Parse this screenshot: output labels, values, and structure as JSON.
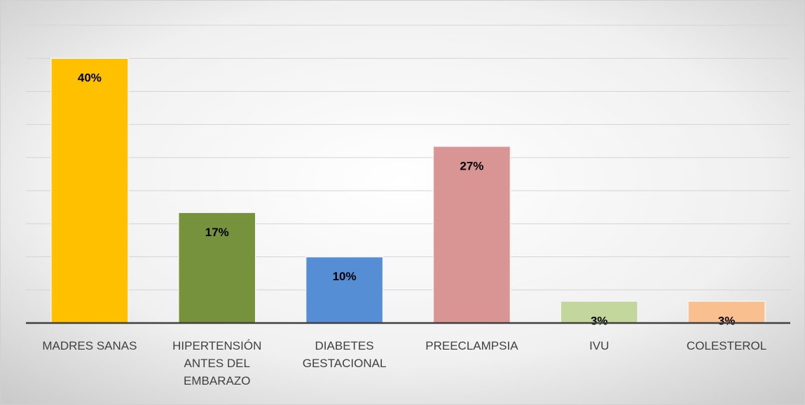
{
  "chart_data": {
    "type": "bar",
    "categories": [
      "MADRES SANAS",
      "HIPERTENSIÓN ANTES DEL EMBARAZO",
      "DIABETES GESTACIONAL",
      "PREECLAMPSIA",
      "IVU",
      "COLESTEROL"
    ],
    "values": [
      40,
      16.7,
      10,
      26.7,
      3.3,
      3.3
    ],
    "value_labels": [
      "40%",
      "17%",
      "10%",
      "27%",
      "3%",
      "3%"
    ],
    "colors": [
      "#FFC000",
      "#76923C",
      "#558ED5",
      "#D99594",
      "#C3D69B",
      "#FABF8F"
    ],
    "ylim": [
      0,
      45
    ],
    "yticks": [
      0,
      5,
      10,
      15,
      20,
      25,
      30,
      35,
      40,
      45
    ],
    "grid": true
  }
}
